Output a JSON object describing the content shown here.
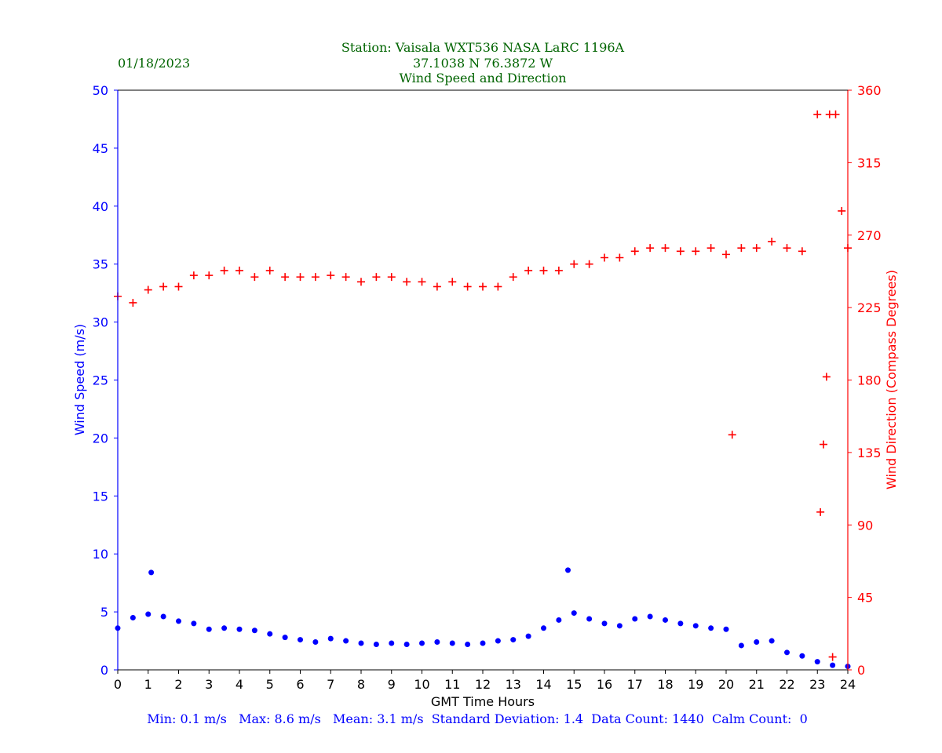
{
  "header": {
    "date": "01/18/2023",
    "title_line1": "Station:  Vaisala WXT536  NASA LaRC 1196A",
    "title_line2": "37.1038 N 76.3872 W",
    "title_line3": "Wind Speed and Direction"
  },
  "footer": {
    "stats": "Min: 0.1 m/s   Max: 8.6 m/s   Mean: 3.1 m/s  Standard Deviation: 1.4  Data Count: 1440  Calm Count:  0"
  },
  "colors": {
    "title": "#006400",
    "speed": "#0000ff",
    "direction": "#ff0000",
    "axis": "#000000"
  },
  "chart_data": {
    "type": "scatter",
    "xlabel": "GMT Time Hours",
    "ylabel_left": "Wind Speed (m/s)",
    "ylabel_right": "Wind Direction (Compass Degrees)",
    "xlim": [
      0,
      24
    ],
    "ylim_left": [
      0,
      50
    ],
    "ylim_right": [
      0,
      360
    ],
    "x_ticks": [
      0,
      1,
      2,
      3,
      4,
      5,
      6,
      7,
      8,
      9,
      10,
      11,
      12,
      13,
      14,
      15,
      16,
      17,
      18,
      19,
      20,
      21,
      22,
      23,
      24
    ],
    "y_ticks_left": [
      0,
      5,
      10,
      15,
      20,
      25,
      30,
      35,
      40,
      45,
      50
    ],
    "y_ticks_right": [
      0,
      45,
      90,
      135,
      180,
      225,
      270,
      315,
      360
    ],
    "grid": false,
    "series": [
      {
        "axis": "left",
        "marker": "dot",
        "x": [
          0,
          0.5,
          1,
          1.1,
          1.5,
          2,
          2.5,
          3,
          3.5,
          4,
          4.5,
          5,
          5.5,
          6,
          6.5,
          7,
          7.5,
          8,
          8.5,
          9,
          9.5,
          10,
          10.5,
          11,
          11.5,
          12,
          12.5,
          13,
          13.5,
          14,
          14.5,
          14.8,
          15,
          15.5,
          16,
          16.5,
          17,
          17.5,
          18,
          18.5,
          19,
          19.5,
          20,
          20.5,
          21,
          21.5,
          22,
          22.5,
          23,
          23.5,
          24
        ],
        "y": [
          3.6,
          4.5,
          4.8,
          8.4,
          4.6,
          4.2,
          4.0,
          3.5,
          3.6,
          3.5,
          3.4,
          3.1,
          2.8,
          2.6,
          2.4,
          2.7,
          2.5,
          2.3,
          2.2,
          2.3,
          2.2,
          2.3,
          2.4,
          2.3,
          2.2,
          2.3,
          2.5,
          2.6,
          2.9,
          3.6,
          4.3,
          8.6,
          4.9,
          4.4,
          4.0,
          3.8,
          4.4,
          4.6,
          4.3,
          4.0,
          3.8,
          3.6,
          3.5,
          2.1,
          2.4,
          2.5,
          1.5,
          1.2,
          0.7,
          0.4,
          0.3
        ]
      },
      {
        "axis": "right",
        "marker": "plus",
        "x": [
          0,
          0.5,
          1,
          1.5,
          2,
          2.5,
          3,
          3.5,
          4,
          4.5,
          5,
          5.5,
          6,
          6.5,
          7,
          7.5,
          8,
          8.5,
          9,
          9.5,
          10,
          10.5,
          11,
          11.5,
          12,
          12.5,
          13,
          13.5,
          14,
          14.5,
          15,
          15.5,
          16,
          16.5,
          17,
          17.5,
          18,
          18.5,
          19,
          19.5,
          20,
          20.2,
          20.5,
          21,
          21.5,
          22,
          22.5,
          23,
          23.1,
          23.2,
          23.3,
          23.4,
          23.5,
          23.6,
          23.8,
          24
        ],
        "y": [
          232,
          228,
          236,
          238,
          238,
          245,
          245,
          248,
          248,
          244,
          248,
          244,
          244,
          244,
          245,
          244,
          241,
          244,
          244,
          241,
          241,
          238,
          241,
          238,
          238,
          238,
          244,
          248,
          248,
          248,
          252,
          252,
          256,
          256,
          260,
          262,
          262,
          260,
          260,
          262,
          258,
          146,
          262,
          262,
          266,
          262,
          260,
          345,
          98,
          140,
          182,
          345,
          8,
          345,
          285,
          262
        ]
      }
    ]
  }
}
